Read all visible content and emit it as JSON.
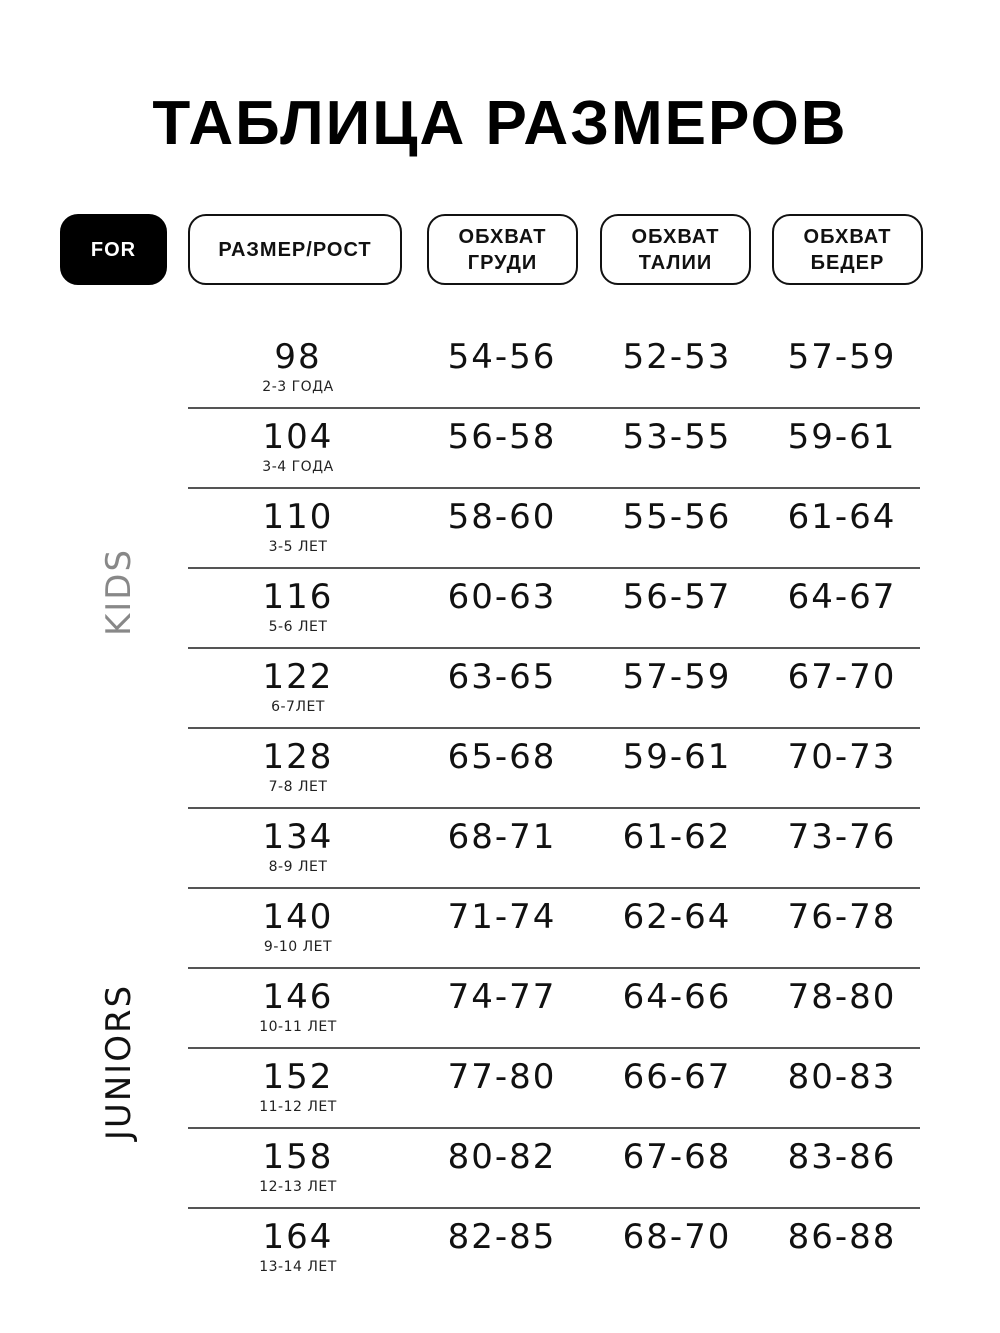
{
  "title": "ТАБЛИЦА РАЗМЕРОВ",
  "headers": {
    "for": "FOR",
    "size": "РАЗМЕР/РОСТ",
    "chest": "ОБХВАТ\nГРУДИ",
    "waist": "ОБХВАТ\nТАЛИИ",
    "hips": "ОБХВАТ\nБЕДЕР"
  },
  "groups": {
    "kids": "KIDS",
    "juniors": "JUNIORS"
  },
  "colors": {
    "kids_label": "#888888",
    "juniors_label": "#111111"
  },
  "rows": [
    {
      "size": "98",
      "age": "2-3 ГОДА",
      "chest": "54-56",
      "waist": "52-53",
      "hips": "57-59"
    },
    {
      "size": "104",
      "age": "3-4 ГОДА",
      "chest": "56-58",
      "waist": "53-55",
      "hips": "59-61"
    },
    {
      "size": "110",
      "age": "3-5 ЛЕТ",
      "chest": "58-60",
      "waist": "55-56",
      "hips": "61-64"
    },
    {
      "size": "116",
      "age": "5-6 ЛЕТ",
      "chest": "60-63",
      "waist": "56-57",
      "hips": "64-67"
    },
    {
      "size": "122",
      "age": "6-7ЛЕТ",
      "chest": "63-65",
      "waist": "57-59",
      "hips": "67-70"
    },
    {
      "size": "128",
      "age": "7-8 ЛЕТ",
      "chest": "65-68",
      "waist": "59-61",
      "hips": "70-73"
    },
    {
      "size": "134",
      "age": "8-9 ЛЕТ",
      "chest": "68-71",
      "waist": "61-62",
      "hips": "73-76"
    },
    {
      "size": "140",
      "age": "9-10 ЛЕТ",
      "chest": "71-74",
      "waist": "62-64",
      "hips": "76-78"
    },
    {
      "size": "146",
      "age": "10-11 ЛЕТ",
      "chest": "74-77",
      "waist": "64-66",
      "hips": "78-80"
    },
    {
      "size": "152",
      "age": "11-12 ЛЕТ",
      "chest": "77-80",
      "waist": "66-67",
      "hips": "80-83"
    },
    {
      "size": "158",
      "age": "12-13 ЛЕТ",
      "chest": "80-82",
      "waist": "67-68",
      "hips": "83-86"
    },
    {
      "size": "164",
      "age": "13-14 ЛЕТ",
      "chest": "82-85",
      "waist": "68-70",
      "hips": "86-88"
    }
  ]
}
